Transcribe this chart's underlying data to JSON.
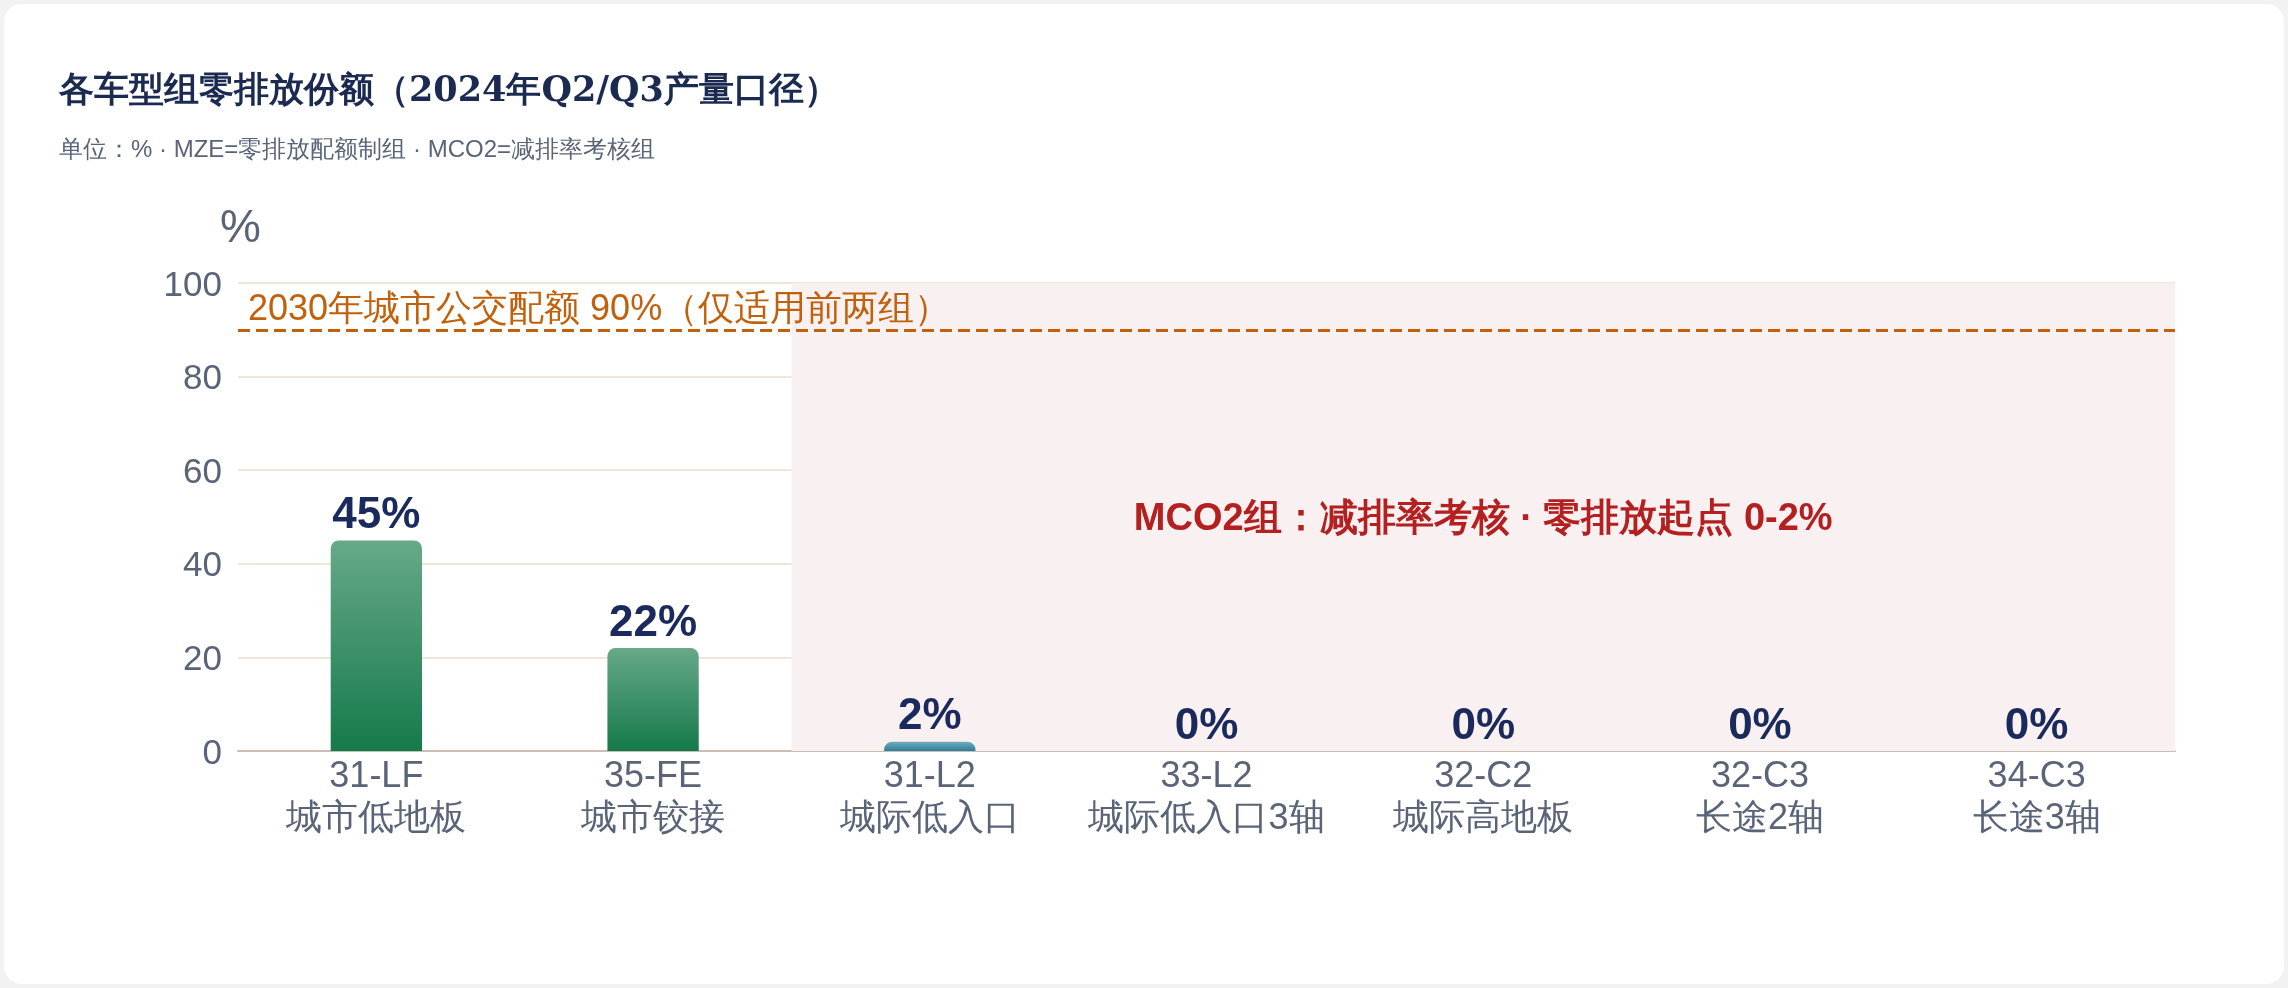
{
  "chart_data": {
    "type": "bar",
    "title": "各车型组零排放份额（2024年Q2/Q3产量口径）",
    "subtitle": "单位：% · MZE=零排放配额制组 · MCO2=减排率考核组",
    "ylabel": "%",
    "categories": [
      "31-LF\n城市低地板",
      "35-FE\n城市铰接",
      "31-L2\n城际低入口",
      "33-L2\n城际低入口3轴",
      "32-C2\n城际高地板",
      "32-C3\n长途2轴",
      "34-C3\n长途3轴"
    ],
    "values": [
      45,
      22,
      2,
      0,
      0,
      0,
      0
    ],
    "colors": [
      "#157a4a",
      "#157a4a",
      "#2a7f98",
      "#2a7f98",
      "#2a7f98",
      "#2a7f98",
      "#2a7f98"
    ],
    "value_labels": [
      "45%",
      "22%",
      "2%",
      "0%",
      "0%",
      "0%",
      "0%"
    ],
    "ylim": [
      0,
      100
    ],
    "yticks": [
      0,
      20,
      40,
      60,
      80,
      100
    ],
    "grid": "y",
    "ref_lines": [
      {
        "axis": "y",
        "value": 90,
        "label": "2030年城市公交配额 90%（仅适用前两组）",
        "color": "#c2610c",
        "line_style": "dashed"
      }
    ],
    "bands": [
      {
        "axis": "x",
        "from": "31-L2\n城际低入口",
        "to": "34-C3\n长途3轴",
        "label": "MCO2组：减排率考核 · 零排放起点 0-2%",
        "color": "#f9f1f1"
      }
    ]
  }
}
